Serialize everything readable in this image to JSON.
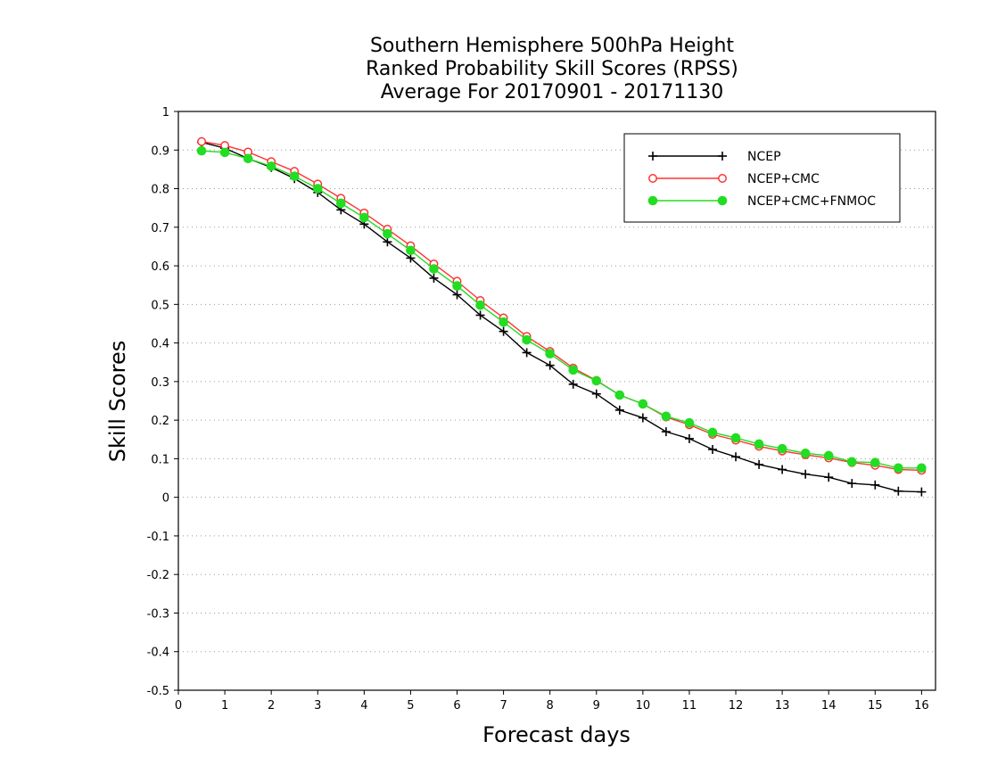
{
  "chart_data": {
    "type": "line",
    "title_lines": [
      "Southern Hemisphere 500hPa Height",
      "Ranked Probability Skill Scores (RPSS)",
      "Average For 20170901 - 20171130"
    ],
    "xlabel": "Forecast days",
    "ylabel": "Skill Scores",
    "xlim": [
      0,
      16.3
    ],
    "ylim": [
      -0.5,
      1
    ],
    "x_ticks": [
      0,
      1,
      2,
      3,
      4,
      5,
      6,
      7,
      8,
      9,
      10,
      11,
      12,
      13,
      14,
      15,
      16
    ],
    "y_ticks": [
      -0.5,
      -0.4,
      -0.3,
      -0.2,
      -0.1,
      0,
      0.1,
      0.2,
      0.3,
      0.4,
      0.5,
      0.6,
      0.7,
      0.8,
      0.9,
      1
    ],
    "y_tick_labels": [
      "-0.5",
      "-0.4",
      "-0.3",
      "-0.2",
      "-0.1",
      "0",
      "0.1",
      "0.2",
      "0.3",
      "0.4",
      "0.5",
      "0.6",
      "0.7",
      "0.8",
      "0.9",
      "1"
    ],
    "grid": "horizontal dotted",
    "legend_position": "top-right",
    "x": [
      0.5,
      1,
      1.5,
      2,
      2.5,
      3,
      3.5,
      4,
      4.5,
      5,
      5.5,
      6,
      6.5,
      7,
      7.5,
      8,
      8.5,
      9,
      9.5,
      10,
      10.5,
      11,
      11.5,
      12,
      12.5,
      13,
      13.5,
      14,
      14.5,
      15,
      15.5,
      16
    ],
    "series": [
      {
        "name": "NCEP",
        "color": "#000000",
        "marker": "plus",
        "values": [
          0.92,
          0.905,
          0.878,
          0.855,
          0.826,
          0.79,
          0.745,
          0.708,
          0.662,
          0.62,
          0.568,
          0.525,
          0.472,
          0.43,
          0.375,
          0.342,
          0.293,
          0.268,
          0.226,
          0.206,
          0.17,
          0.152,
          0.124,
          0.105,
          0.085,
          0.072,
          0.06,
          0.052,
          0.036,
          0.032,
          0.016,
          0.014
        ]
      },
      {
        "name": "NCEP+CMC",
        "color": "#ff3333",
        "marker": "open-circle",
        "values": [
          0.922,
          0.912,
          0.895,
          0.87,
          0.845,
          0.812,
          0.775,
          0.737,
          0.695,
          0.652,
          0.605,
          0.56,
          0.51,
          0.465,
          0.417,
          0.378,
          0.335,
          0.303,
          0.265,
          0.242,
          0.208,
          0.188,
          0.163,
          0.148,
          0.132,
          0.12,
          0.11,
          0.102,
          0.09,
          0.083,
          0.072,
          0.07
        ]
      },
      {
        "name": "NCEP+CMC+FNMOC",
        "color": "#22dd22",
        "marker": "filled-circle",
        "values": [
          0.898,
          0.894,
          0.878,
          0.858,
          0.832,
          0.8,
          0.762,
          0.725,
          0.683,
          0.64,
          0.592,
          0.548,
          0.498,
          0.454,
          0.408,
          0.372,
          0.33,
          0.302,
          0.265,
          0.242,
          0.21,
          0.193,
          0.168,
          0.154,
          0.138,
          0.126,
          0.114,
          0.108,
          0.092,
          0.09,
          0.076,
          0.076
        ]
      }
    ]
  }
}
